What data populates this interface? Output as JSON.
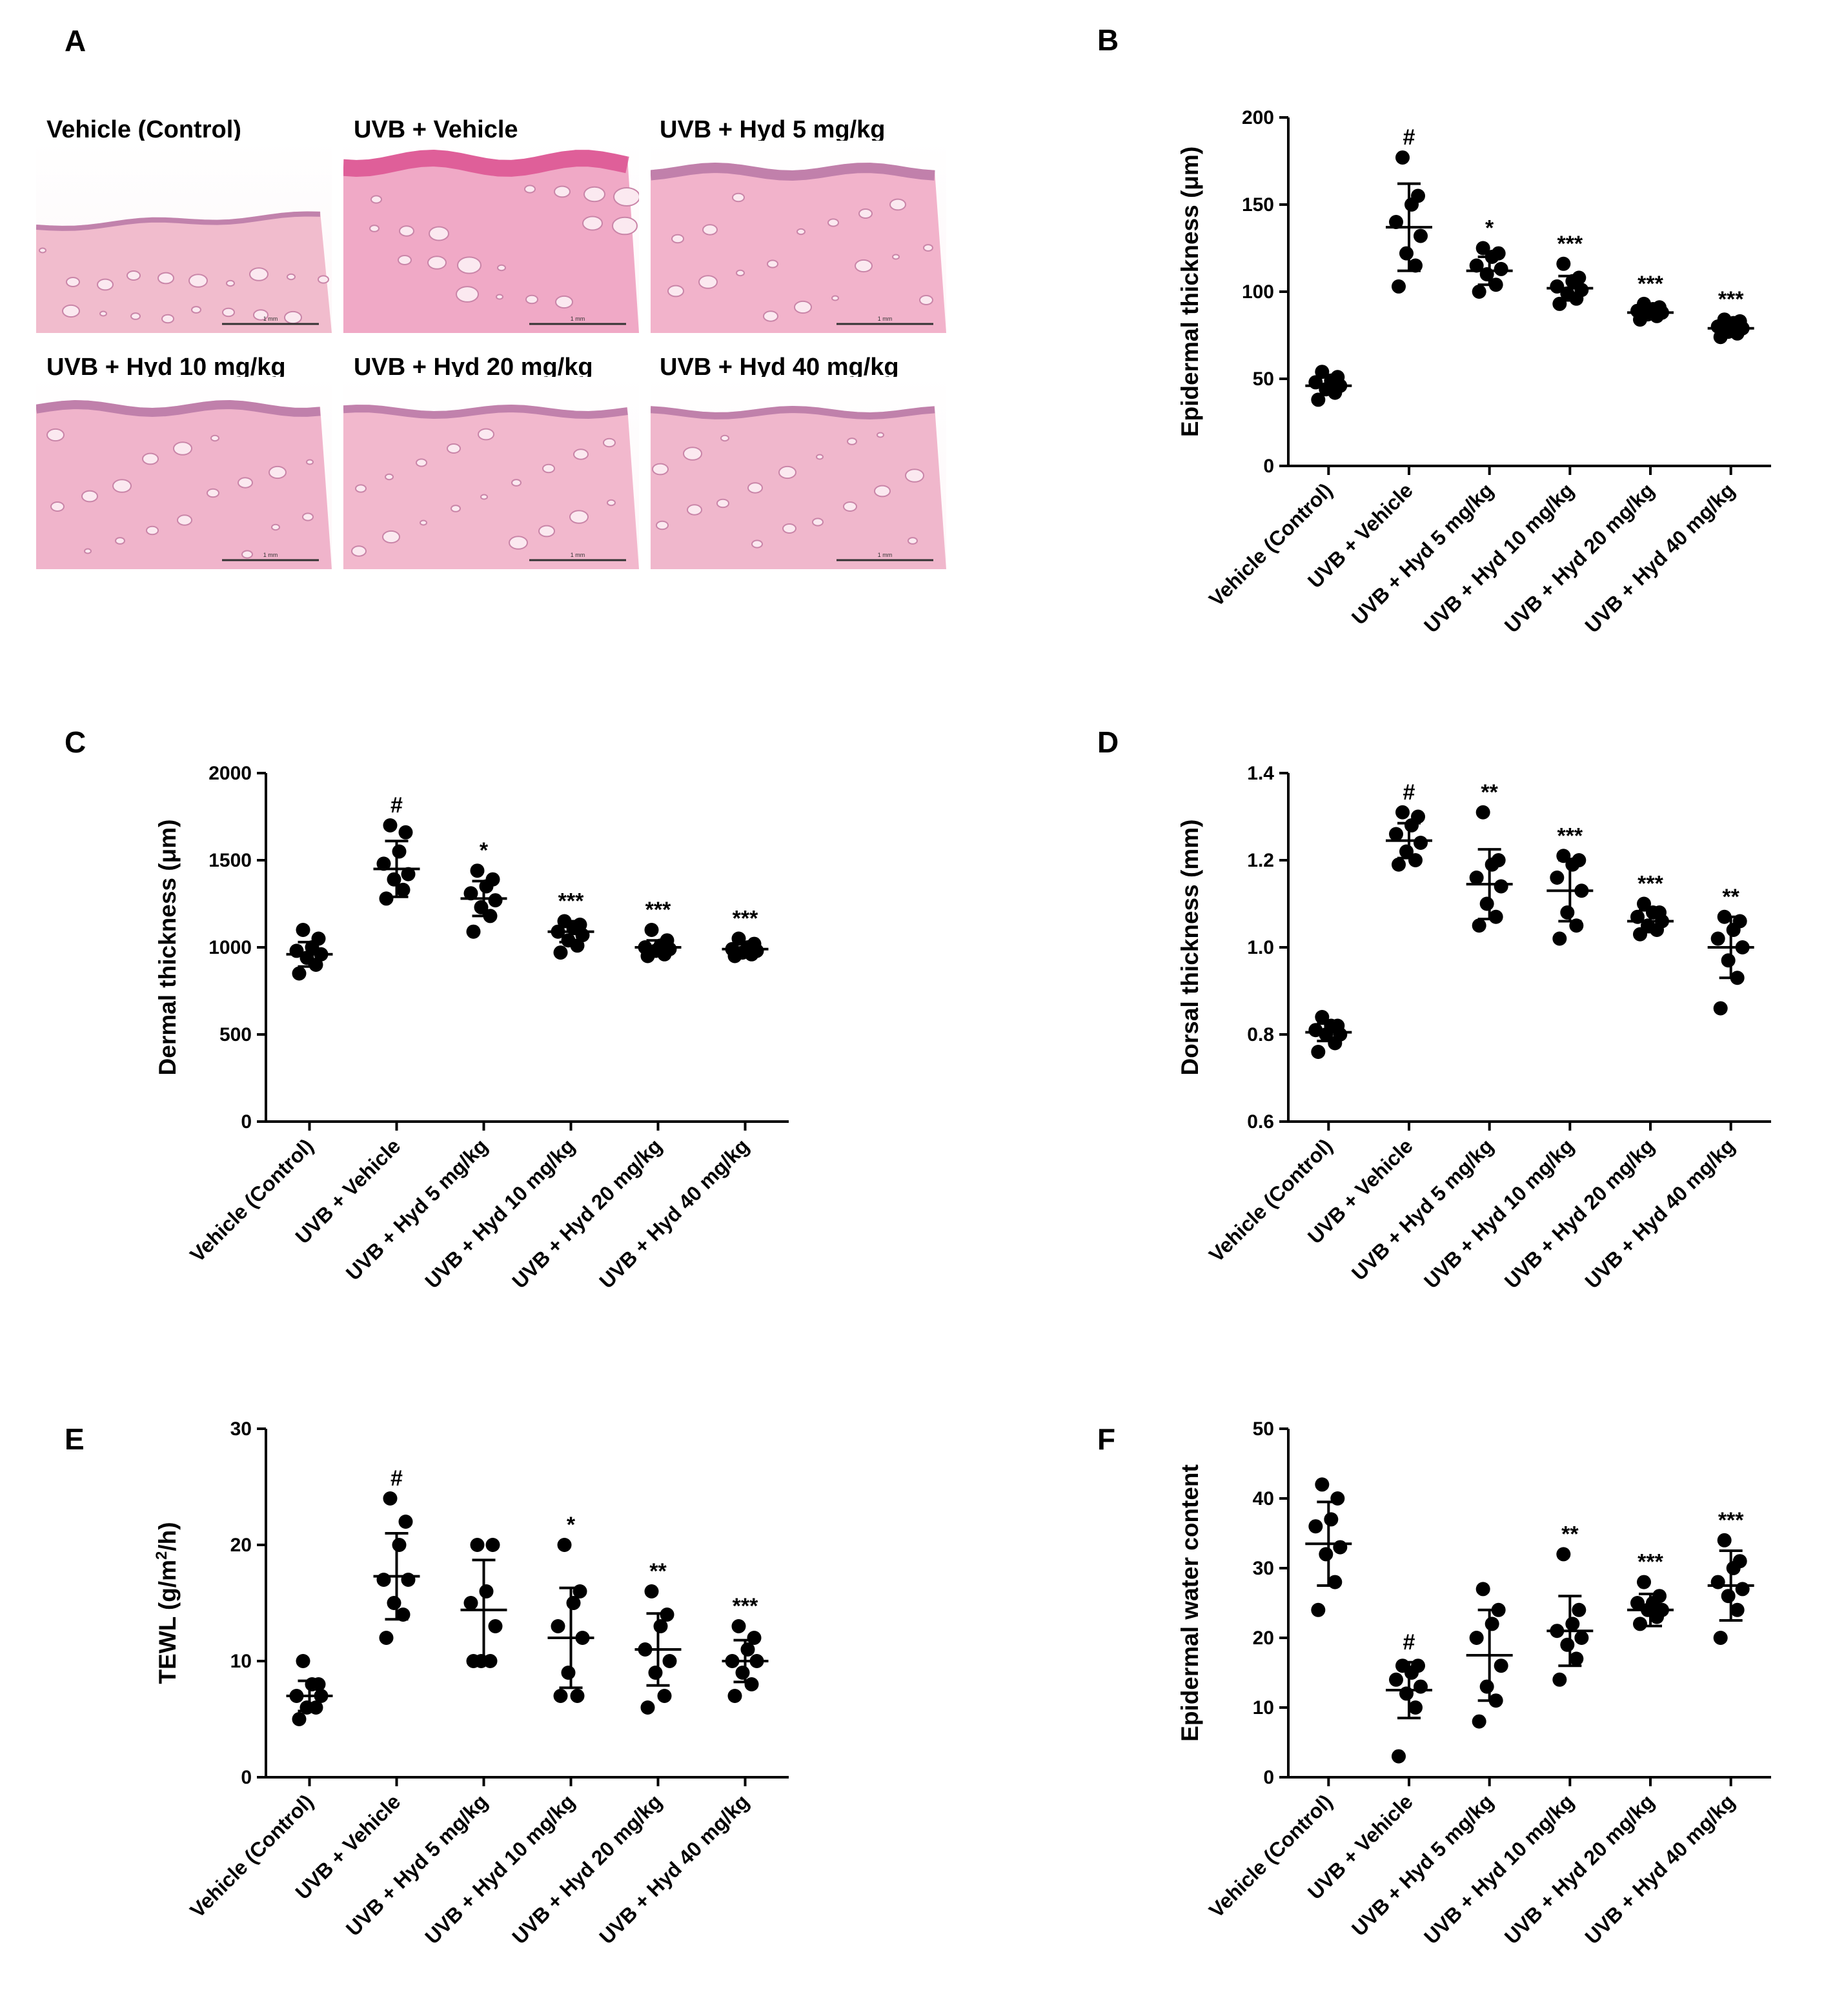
{
  "figure": {
    "panel_a_label": "A",
    "histology_panels": [
      {
        "label": "Vehicle (Control)",
        "scale_bar": "1 mm"
      },
      {
        "label": "UVB + Vehicle",
        "scale_bar": "1 mm"
      },
      {
        "label": "UVB + Hyd 5 mg/kg",
        "scale_bar": "1 mm"
      },
      {
        "label": "UVB + Hyd 10 mg/kg",
        "scale_bar": "1 mm"
      },
      {
        "label": "UVB + Hyd 20 mg/kg",
        "scale_bar": "1 mm"
      },
      {
        "label": "UVB + Hyd 40 mg/kg",
        "scale_bar": "1 mm"
      }
    ],
    "colors": {
      "marker": "#000000",
      "he_stain": "#f3b9cf",
      "epidermis": "#d9478a"
    }
  },
  "chart_data": [
    {
      "panel": "B",
      "type": "scatter",
      "ylabel": "Epidermal thickness (μm)",
      "ylim": [
        0,
        200
      ],
      "yticks": [
        0,
        50,
        100,
        150,
        200
      ],
      "categories": [
        "Vehicle (Control)",
        "UVB + Vehicle",
        "UVB + Hyd 5 mg/kg",
        "UVB + Hyd 10 mg/kg",
        "UVB + Hyd 20 mg/kg",
        "UVB + Hyd 40 mg/kg"
      ],
      "points": [
        [
          38,
          42,
          44,
          46,
          48,
          49,
          51,
          54
        ],
        [
          103,
          115,
          122,
          132,
          140,
          150,
          155,
          177
        ],
        [
          100,
          104,
          110,
          113,
          115,
          120,
          122,
          125
        ],
        [
          93,
          96,
          99,
          101,
          103,
          106,
          108,
          116
        ],
        [
          84,
          86,
          87,
          88,
          89,
          90,
          91,
          93
        ],
        [
          74,
          76,
          77,
          79,
          80,
          82,
          83,
          84
        ]
      ],
      "means": [
        46,
        137,
        112,
        102,
        88,
        79
      ],
      "sds": [
        5,
        25,
        8,
        7,
        3,
        3
      ],
      "annotations": [
        "",
        "#",
        "*",
        "***",
        "***",
        "***"
      ]
    },
    {
      "panel": "C",
      "type": "scatter",
      "ylabel": "Dermal thickness (μm)",
      "ylim": [
        0,
        2000
      ],
      "yticks": [
        0,
        500,
        1000,
        1500,
        2000
      ],
      "categories": [
        "Vehicle (Control)",
        "UVB + Vehicle",
        "UVB + Hyd 5 mg/kg",
        "UVB + Hyd 10 mg/kg",
        "UVB + Hyd 20 mg/kg",
        "UVB + Hyd 40 mg/kg"
      ],
      "points": [
        [
          850,
          900,
          940,
          960,
          980,
          1000,
          1050,
          1100
        ],
        [
          1280,
          1330,
          1390,
          1420,
          1480,
          1550,
          1660,
          1700
        ],
        [
          1090,
          1180,
          1230,
          1270,
          1310,
          1350,
          1390,
          1440
        ],
        [
          970,
          1010,
          1040,
          1070,
          1090,
          1110,
          1130,
          1150
        ],
        [
          950,
          960,
          980,
          990,
          1000,
          1010,
          1040,
          1100
        ],
        [
          950,
          960,
          970,
          980,
          990,
          1000,
          1020,
          1050
        ]
      ],
      "means": [
        960,
        1450,
        1280,
        1090,
        1000,
        990
      ],
      "sds": [
        70,
        160,
        100,
        60,
        40,
        35
      ],
      "annotations": [
        "",
        "#",
        "*",
        "***",
        "***",
        "***"
      ]
    },
    {
      "panel": "D",
      "type": "scatter",
      "ylabel": "Dorsal thickness (mm)",
      "ylim": [
        0.6,
        1.4
      ],
      "yticks": [
        0.6,
        0.8,
        1.0,
        1.2,
        1.4
      ],
      "ytick_labels": [
        "0.6",
        "0.8",
        "1.0",
        "1.2",
        "1.4"
      ],
      "categories": [
        "Vehicle (Control)",
        "UVB + Vehicle",
        "UVB + Hyd 5 mg/kg",
        "UVB + Hyd 10 mg/kg",
        "UVB + Hyd 20 mg/kg",
        "UVB + Hyd 40 mg/kg"
      ],
      "points": [
        [
          0.76,
          0.78,
          0.8,
          0.8,
          0.81,
          0.82,
          0.82,
          0.84
        ],
        [
          1.19,
          1.2,
          1.22,
          1.24,
          1.26,
          1.28,
          1.3,
          1.31
        ],
        [
          1.05,
          1.07,
          1.1,
          1.14,
          1.16,
          1.19,
          1.2,
          1.31
        ],
        [
          1.02,
          1.05,
          1.08,
          1.13,
          1.16,
          1.19,
          1.2,
          1.21
        ],
        [
          1.03,
          1.04,
          1.05,
          1.06,
          1.07,
          1.08,
          1.08,
          1.1
        ],
        [
          0.86,
          0.93,
          0.97,
          1.0,
          1.02,
          1.04,
          1.06,
          1.07
        ]
      ],
      "means": [
        0.805,
        1.245,
        1.145,
        1.13,
        1.06,
        1.0
      ],
      "sds": [
        0.02,
        0.04,
        0.08,
        0.07,
        0.025,
        0.07
      ],
      "annotations": [
        "",
        "#",
        "**",
        "***",
        "***",
        "**"
      ]
    },
    {
      "panel": "E",
      "type": "scatter",
      "ylabel": "TEWL (g/m",
      "ylabel_sup": "2",
      "ylabel_tail": "/h)",
      "ylim": [
        0,
        30
      ],
      "yticks": [
        0,
        10,
        20,
        30
      ],
      "categories": [
        "Vehicle (Control)",
        "UVB + Vehicle",
        "UVB + Hyd 5 mg/kg",
        "UVB + Hyd 10 mg/kg",
        "UVB + Hyd 20 mg/kg",
        "UVB + Hyd 40 mg/kg"
      ],
      "points": [
        [
          5,
          6,
          6,
          7,
          7,
          8,
          8,
          10
        ],
        [
          12,
          14,
          15,
          17,
          17,
          20,
          22,
          24
        ],
        [
          10,
          10,
          10,
          13,
          15,
          16,
          20,
          20
        ],
        [
          7,
          7,
          9,
          12,
          13,
          15,
          16,
          20
        ],
        [
          6,
          7,
          9,
          10,
          11,
          13,
          14,
          16
        ],
        [
          7,
          8,
          9,
          10,
          10,
          11,
          12,
          13
        ]
      ],
      "means": [
        7,
        17.3,
        14.4,
        12,
        11,
        10
      ],
      "sds": [
        1.3,
        3.7,
        4.3,
        4.3,
        3.1,
        1.8
      ],
      "annotations": [
        "",
        "#",
        "",
        "*",
        "**",
        "***"
      ]
    },
    {
      "panel": "F",
      "type": "scatter",
      "ylabel": "Epidermal water content",
      "ylim": [
        0,
        50
      ],
      "yticks": [
        0,
        10,
        20,
        30,
        40,
        50
      ],
      "categories": [
        "Vehicle (Control)",
        "UVB + Vehicle",
        "UVB + Hyd 5 mg/kg",
        "UVB + Hyd 10 mg/kg",
        "UVB + Hyd 20 mg/kg",
        "UVB + Hyd 40 mg/kg"
      ],
      "points": [
        [
          24,
          28,
          32,
          33,
          36,
          37,
          40,
          42
        ],
        [
          3,
          10,
          12,
          13,
          14,
          15,
          16,
          16
        ],
        [
          8,
          11,
          13,
          16,
          20,
          22,
          24,
          27
        ],
        [
          14,
          17,
          19,
          20,
          21,
          22,
          24,
          32
        ],
        [
          22,
          23,
          24,
          24,
          25,
          25,
          26,
          28
        ],
        [
          20,
          24,
          26,
          27,
          28,
          30,
          31,
          34
        ]
      ],
      "means": [
        33.5,
        12.5,
        17.5,
        21,
        24,
        27.5
      ],
      "sds": [
        6,
        4,
        6.5,
        5,
        2.3,
        5
      ],
      "annotations": [
        "",
        "#",
        "",
        "**",
        "***",
        "***"
      ]
    }
  ]
}
